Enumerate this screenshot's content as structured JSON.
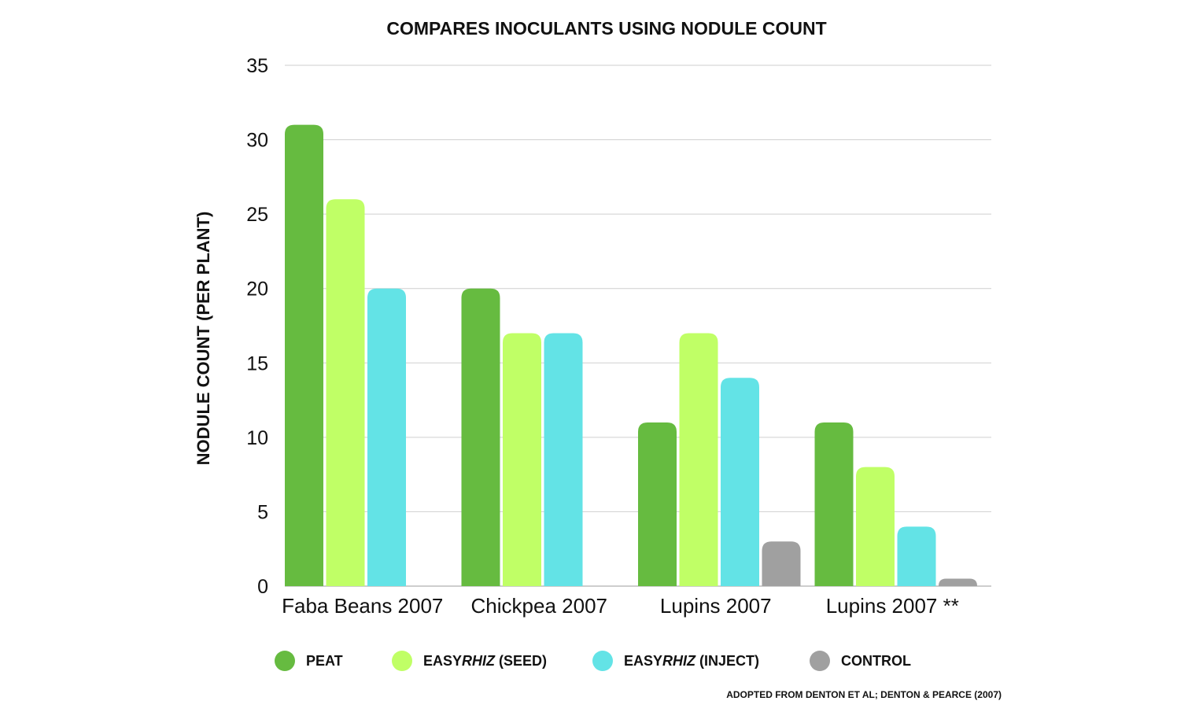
{
  "chart_data": {
    "type": "bar",
    "title": "COMPARES INOCULANTS USING NODULE COUNT",
    "ylabel": "NODULE COUNT (PER PLANT)",
    "xlabel": "",
    "ylim": [
      0,
      35
    ],
    "yticks": [
      0,
      5,
      10,
      15,
      20,
      25,
      30,
      35
    ],
    "grid": true,
    "legend_position": "bottom",
    "categories": [
      "Faba Beans 2007",
      "Chickpea 2007",
      "Lupins 2007",
      "Lupins 2007 **"
    ],
    "series": [
      {
        "name": "PEAT",
        "legend_parts": [
          {
            "text": "PEAT",
            "italic": false
          }
        ],
        "color": "#66bb40",
        "values": [
          31,
          20,
          11,
          11
        ]
      },
      {
        "name": "EASYRHIZ (SEED)",
        "legend_parts": [
          {
            "text": "EASY",
            "italic": false
          },
          {
            "text": "RHIZ",
            "italic": true
          },
          {
            "text": " (SEED)",
            "italic": false
          }
        ],
        "color": "#c0ff66",
        "values": [
          26,
          17,
          17,
          8
        ]
      },
      {
        "name": "EASYRHIZ (INJECT)",
        "legend_parts": [
          {
            "text": "EASY",
            "italic": false
          },
          {
            "text": "RHIZ",
            "italic": true
          },
          {
            "text": " (INJECT)",
            "italic": false
          }
        ],
        "color": "#63e3e6",
        "values": [
          20,
          17,
          14,
          4
        ]
      },
      {
        "name": "CONTROL",
        "legend_parts": [
          {
            "text": "CONTROL",
            "italic": false
          }
        ],
        "color": "#a0a0a0",
        "values": [
          0,
          0,
          3,
          0.5
        ]
      }
    ],
    "source_note": "ADOPTED FROM  DENTON ET AL; DENTON & PEARCE (2007)"
  }
}
